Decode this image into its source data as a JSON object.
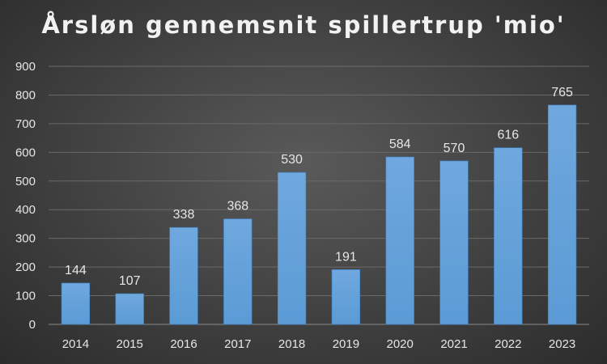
{
  "chart_data": {
    "type": "bar",
    "title": "Årsløn gennemsnit spillertrup 'mio'",
    "xlabel": "",
    "ylabel": "",
    "categories": [
      "2014",
      "2015",
      "2016",
      "2017",
      "2018",
      "2019",
      "2020",
      "2021",
      "2022",
      "2023"
    ],
    "values": [
      144,
      107,
      338,
      368,
      530,
      191,
      584,
      570,
      616,
      765
    ],
    "ylim": [
      0,
      900
    ],
    "yticks": [
      0,
      100,
      200,
      300,
      400,
      500,
      600,
      700,
      800,
      900
    ],
    "grid": true,
    "legend": "none",
    "bar_color": "#5b9bd5",
    "bar_color_top": "#6fa8de",
    "gridline_color": "#6a6a6a",
    "text_color": "#e6e6e6"
  }
}
